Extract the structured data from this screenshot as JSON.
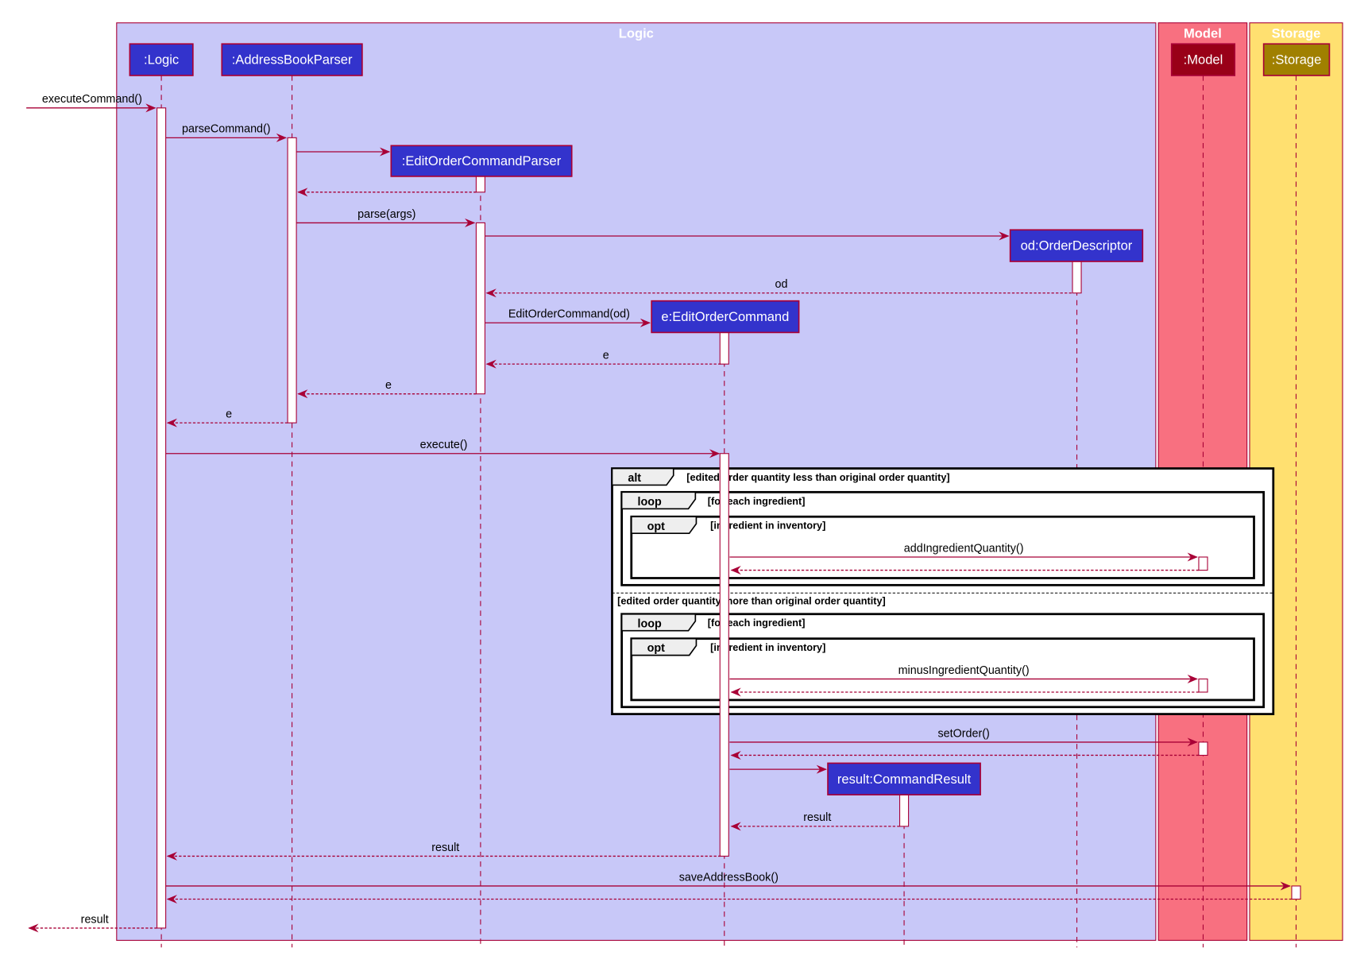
{
  "groups": [
    {
      "id": "logic",
      "title": "Logic",
      "color": "#C8C8F8"
    },
    {
      "id": "model",
      "title": "Model",
      "color": "#F87080"
    },
    {
      "id": "storage",
      "title": "Storage",
      "color": "#FFE070"
    }
  ],
  "participants": [
    {
      "id": "logic",
      "label": ":Logic",
      "color": "#3333CC"
    },
    {
      "id": "abp",
      "label": ":AddressBookParser",
      "color": "#3333CC"
    },
    {
      "id": "eocp",
      "label": ":EditOrderCommandParser",
      "color": "#3333CC"
    },
    {
      "id": "eoc",
      "label": "e:EditOrderCommand",
      "color": "#3333CC"
    },
    {
      "id": "cr",
      "label": "result:CommandResult",
      "color": "#3333CC"
    },
    {
      "id": "od",
      "label": "od:OrderDescriptor",
      "color": "#3333CC"
    },
    {
      "id": "model",
      "label": ":Model",
      "color": "#990018"
    },
    {
      "id": "storage",
      "label": ":Storage",
      "color": "#A08000"
    }
  ],
  "line_color": "#A80036",
  "messages": [
    {
      "from": "external",
      "to": "logic",
      "label": "executeCommand()",
      "type": "call"
    },
    {
      "from": "logic",
      "to": "abp",
      "label": "parseCommand()",
      "type": "call"
    },
    {
      "from": "abp",
      "to": "eocp",
      "label": "",
      "type": "create"
    },
    {
      "from": "eocp",
      "to": "abp",
      "label": "",
      "type": "return"
    },
    {
      "from": "abp",
      "to": "eocp",
      "label": "parse(args)",
      "type": "call"
    },
    {
      "from": "eocp",
      "to": "od",
      "label": "",
      "type": "create"
    },
    {
      "from": "od",
      "to": "eocp",
      "label": "od",
      "type": "return"
    },
    {
      "from": "eocp",
      "to": "eoc",
      "label": "EditOrderCommand(od)",
      "type": "create"
    },
    {
      "from": "eoc",
      "to": "eocp",
      "label": "e",
      "type": "return"
    },
    {
      "from": "eocp",
      "to": "abp",
      "label": "e",
      "type": "return"
    },
    {
      "from": "abp",
      "to": "logic",
      "label": "e",
      "type": "return"
    },
    {
      "from": "logic",
      "to": "eoc",
      "label": "execute()",
      "type": "call"
    },
    {
      "from": "eoc",
      "to": "model",
      "label": "addIngredientQuantity()",
      "type": "call"
    },
    {
      "from": "model",
      "to": "eoc",
      "label": "",
      "type": "return"
    },
    {
      "from": "eoc",
      "to": "model",
      "label": "minusIngredientQuantity()",
      "type": "call"
    },
    {
      "from": "model",
      "to": "eoc",
      "label": "",
      "type": "return"
    },
    {
      "from": "eoc",
      "to": "model",
      "label": "setOrder()",
      "type": "call"
    },
    {
      "from": "model",
      "to": "eoc",
      "label": "",
      "type": "return"
    },
    {
      "from": "eoc",
      "to": "cr",
      "label": "",
      "type": "create"
    },
    {
      "from": "cr",
      "to": "eoc",
      "label": "result",
      "type": "return"
    },
    {
      "from": "eoc",
      "to": "logic",
      "label": "result",
      "type": "return"
    },
    {
      "from": "logic",
      "to": "storage",
      "label": "saveAddressBook()",
      "type": "call"
    },
    {
      "from": "storage",
      "to": "logic",
      "label": "",
      "type": "return"
    },
    {
      "from": "logic",
      "to": "external",
      "label": "result",
      "type": "return"
    }
  ],
  "fragments": [
    {
      "kind": "alt",
      "guard": "[edited order quantity less than original order quantity]",
      "else_guard": "[edited order quantity more than original order quantity]"
    },
    {
      "kind": "loop",
      "guard": "[for each ingredient]"
    },
    {
      "kind": "opt",
      "guard": "[ingredient in inventory]"
    },
    {
      "kind": "loop",
      "guard": "[for each ingredient]"
    },
    {
      "kind": "opt",
      "guard": "[ingredient in inventory]"
    }
  ]
}
